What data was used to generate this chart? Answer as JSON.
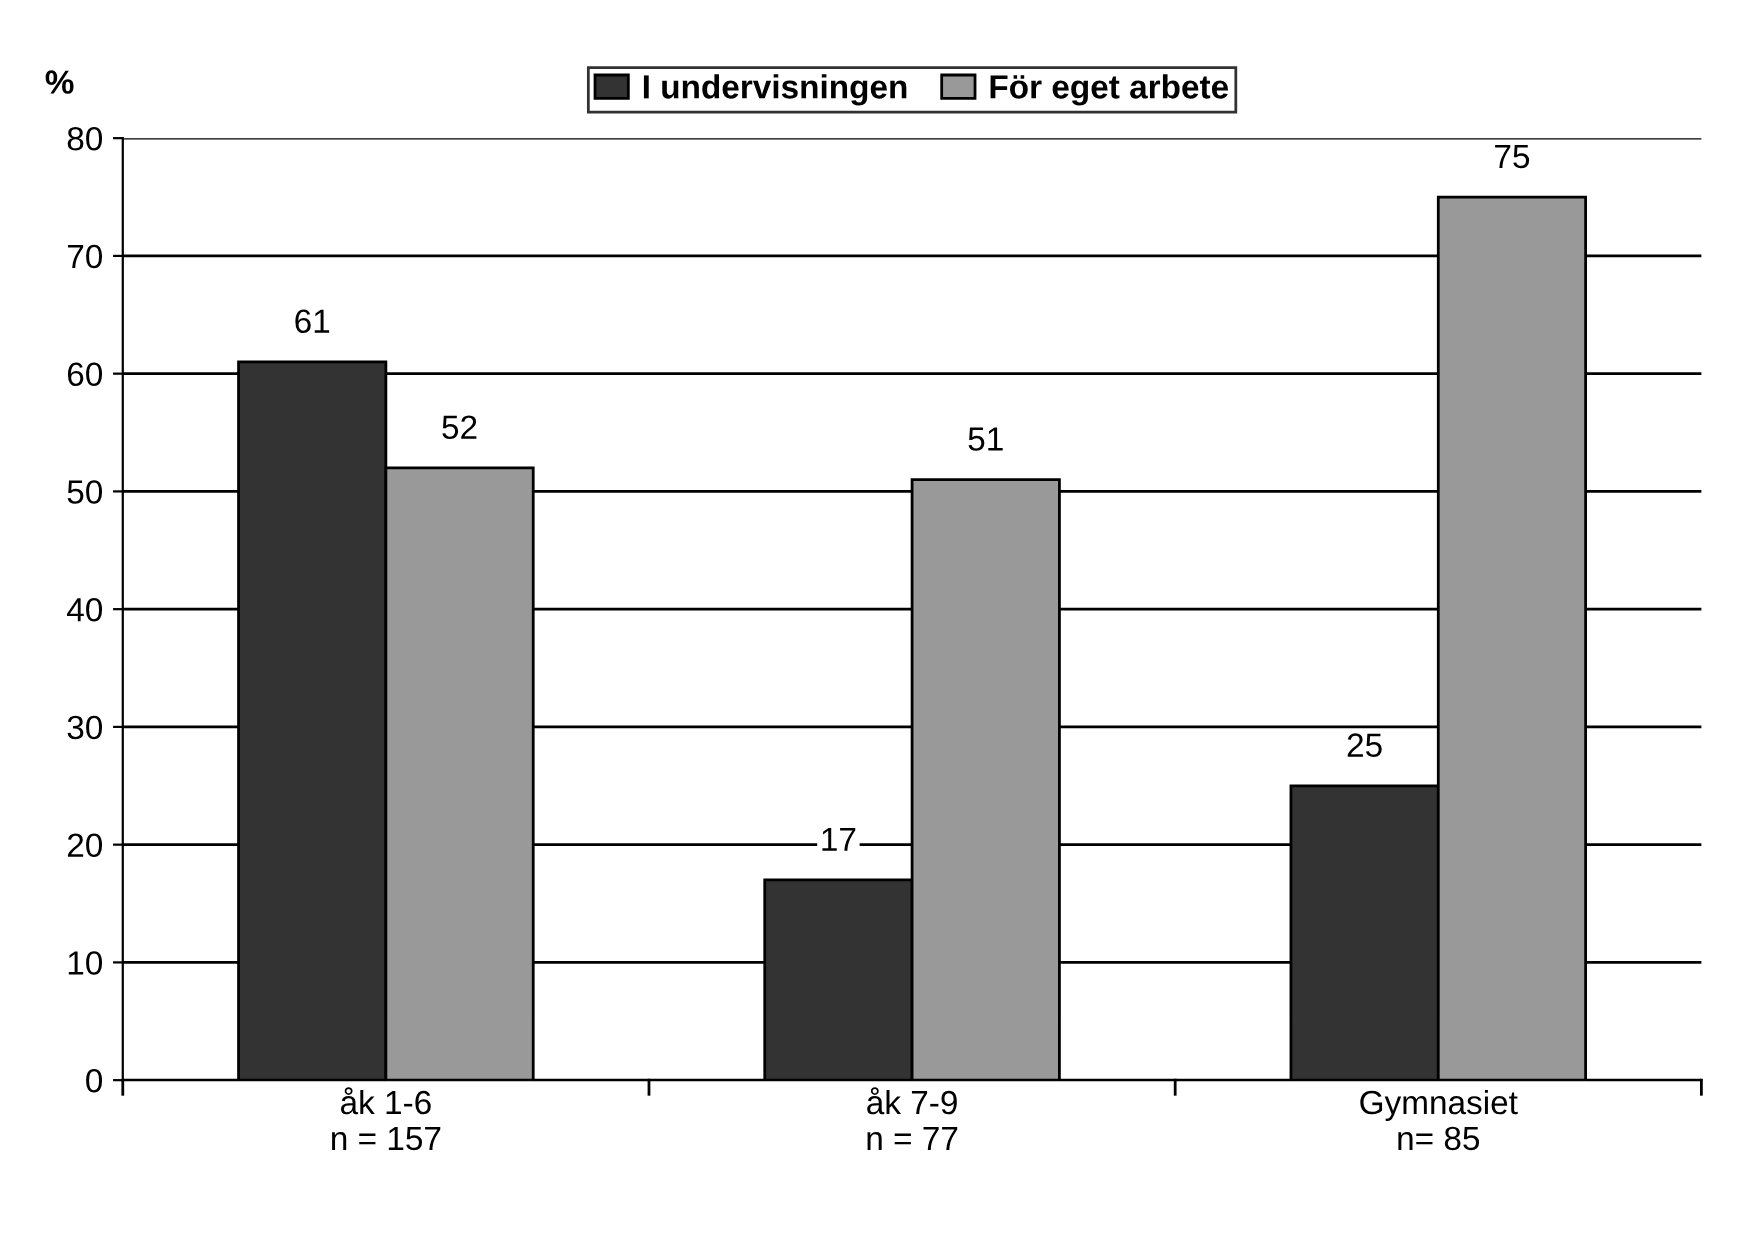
{
  "chart_data": {
    "type": "bar",
    "ylabel": "%",
    "categories": [
      "åk 1-6\nn = 157",
      "åk 7-9\nn = 77",
      "Gymnasiet\nn= 85"
    ],
    "series": [
      {
        "name": "I undervisningen",
        "color": "#333333",
        "values": [
          61,
          17,
          25
        ]
      },
      {
        "name": "För eget arbete",
        "color": "#999999",
        "values": [
          52,
          51,
          75
        ]
      }
    ],
    "ylim": [
      0,
      80
    ],
    "yticks": [
      0,
      10,
      20,
      30,
      40,
      50,
      60,
      70,
      80
    ],
    "grid": "y",
    "legend": "top",
    "data_labels": true
  }
}
